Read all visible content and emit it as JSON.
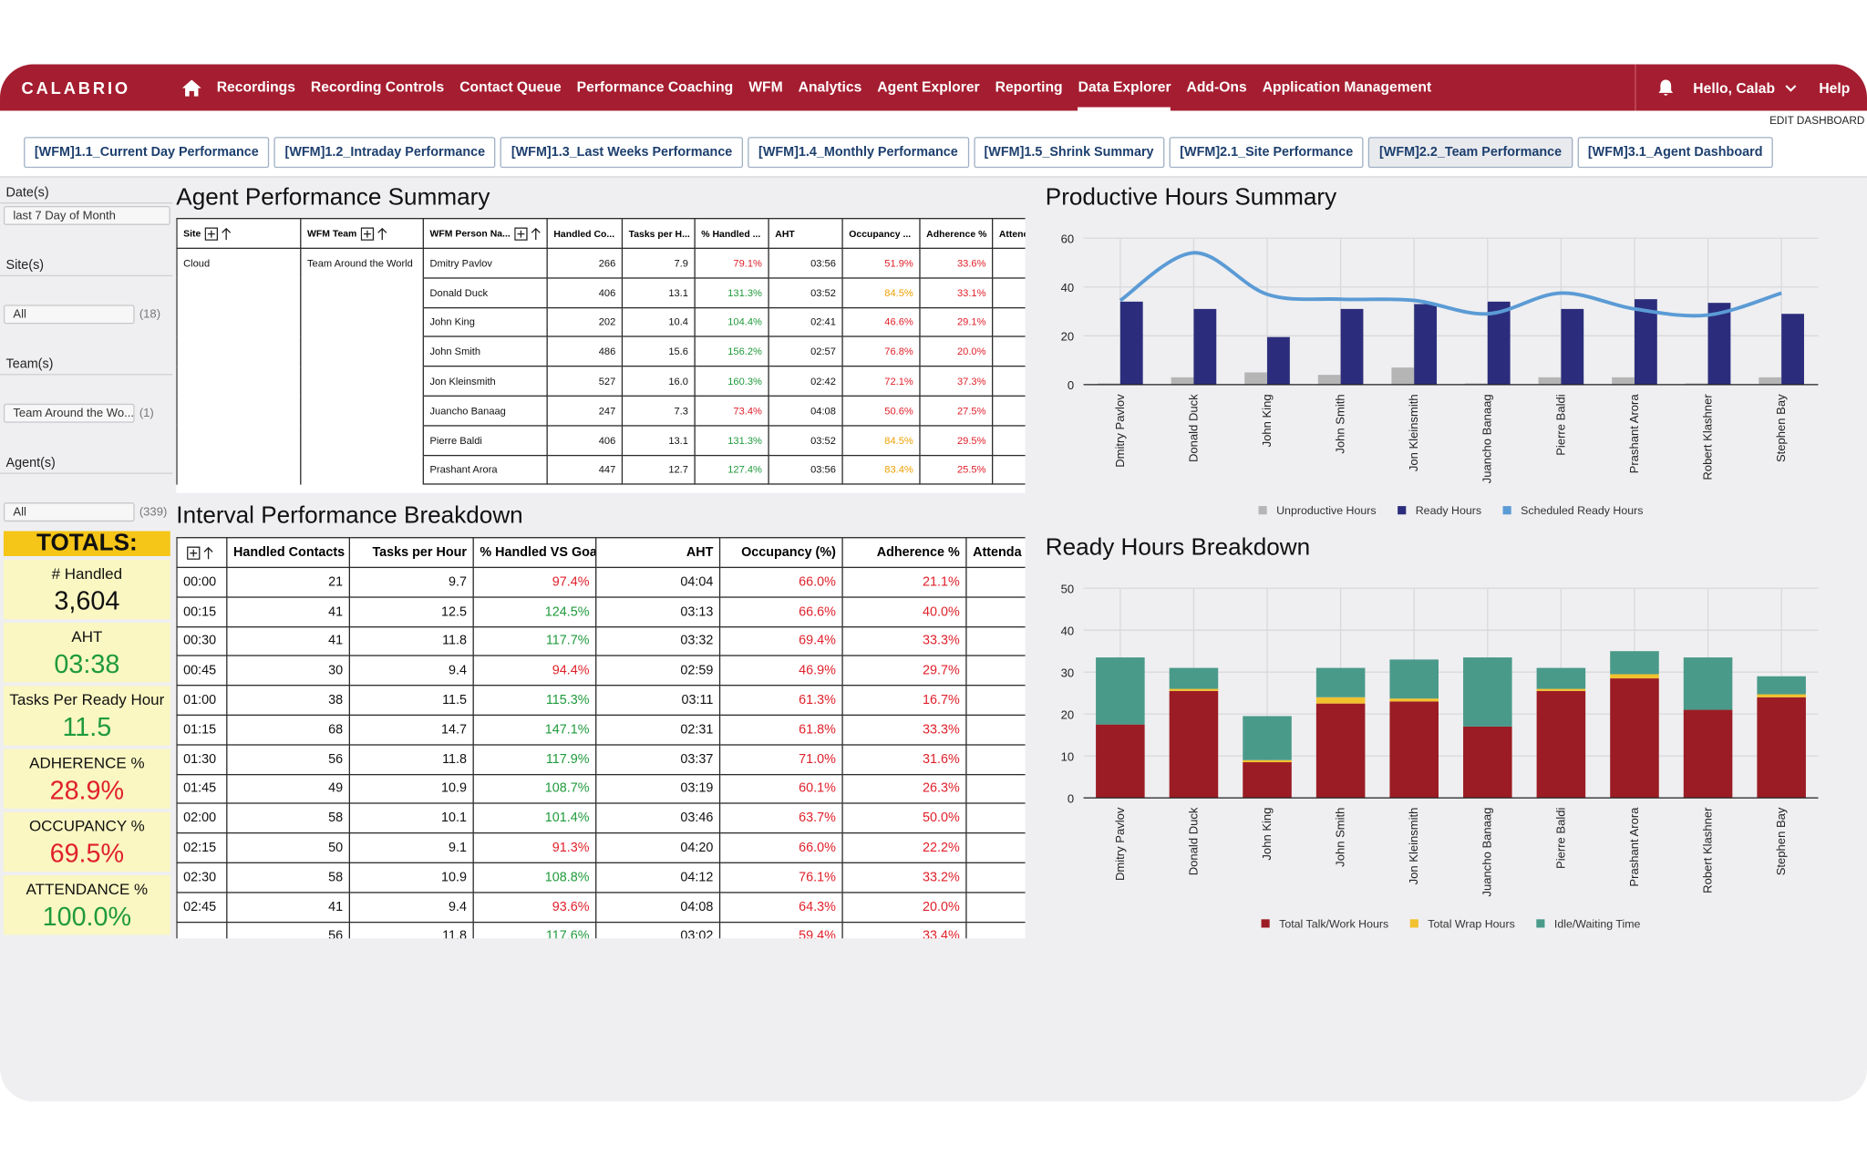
{
  "nav": {
    "brand": "CALABRIO",
    "items": [
      "Recordings",
      "Recording Controls",
      "Contact Queue",
      "Performance Coaching",
      "WFM",
      "Analytics",
      "Agent Explorer",
      "Reporting",
      "Data Explorer",
      "Add-Ons",
      "Application Management"
    ],
    "greeting": "Hello, Calab",
    "help": "Help"
  },
  "edit_dashboard": "EDIT DASHBOARD",
  "tabs": [
    "[WFM]1.1_Current Day Performance",
    "[WFM]1.2_Intraday Performance",
    "[WFM]1.3_Last Weeks Performance",
    "[WFM]1.4_Monthly Performance",
    "[WFM]1.5_Shrink Summary",
    "[WFM]2.1_Site Performance",
    "[WFM]2.2_Team Performance",
    "[WFM]3.1_Agent Dashboard"
  ],
  "filters": [
    {
      "label": "Date(s)",
      "value": "last 7 Day of Month"
    },
    {
      "label": "Site(s)",
      "value": "All",
      "count": "(18)"
    },
    {
      "label": "Team(s)",
      "value": "Team Around the Wo...",
      "count": "(1)"
    },
    {
      "label": "Agent(s)",
      "value": "All",
      "count": "(339)"
    }
  ],
  "totals": {
    "title": "TOTALS:",
    "items": [
      {
        "label": "# Handled",
        "value": "3,604",
        "color": "#111111"
      },
      {
        "label": "AHT",
        "value": "03:38",
        "color": "#1f9a3c"
      },
      {
        "label": "Tasks Per Ready Hour",
        "value": "11.5",
        "color": "#1f9a3c"
      },
      {
        "label": "ADHERENCE %",
        "value": "28.9%",
        "color": "#e0212b"
      },
      {
        "label": "OCCUPANCY %",
        "value": "69.5%",
        "color": "#e0212b"
      },
      {
        "label": "ATTENDANCE %",
        "value": "100.0%",
        "color": "#1f9a3c"
      }
    ]
  },
  "agent_summary": {
    "title": "Agent Performance Summary",
    "columns": [
      "Site",
      "WFM Team",
      "WFM Person Na...",
      "Handled Co...",
      "Tasks per H...",
      "% Handled ...",
      "AHT",
      "Occupancy ...",
      "Adherence %",
      "Attend"
    ],
    "rows": [
      [
        "Cloud",
        "Team Around the World",
        "Dmitry Pavlov",
        "266",
        "7.9",
        "79.1%",
        "03:56",
        "51.9%",
        "33.6%",
        null
      ],
      [
        null,
        null,
        "Donald Duck",
        "406",
        "13.1",
        "131.3%",
        "03:52",
        "84.5%",
        "33.1%",
        null
      ],
      [
        null,
        null,
        "John King",
        "202",
        "10.4",
        "104.4%",
        "02:41",
        "46.6%",
        "29.1%",
        null
      ],
      [
        null,
        null,
        "John Smith",
        "486",
        "15.6",
        "156.2%",
        "02:57",
        "76.8%",
        "20.0%",
        null
      ],
      [
        null,
        null,
        "Jon Kleinsmith",
        "527",
        "16.0",
        "160.3%",
        "02:42",
        "72.1%",
        "37.3%",
        null
      ],
      [
        null,
        null,
        "Juancho Banaag",
        "247",
        "7.3",
        "73.4%",
        "04:08",
        "50.6%",
        "27.5%",
        null
      ],
      [
        null,
        null,
        "Pierre Baldi",
        "406",
        "13.1",
        "131.3%",
        "03:52",
        "84.5%",
        "29.5%",
        null
      ],
      [
        null,
        null,
        "Prashant Arora",
        "447",
        "12.7",
        "127.4%",
        "03:56",
        "83.4%",
        "25.5%",
        null
      ]
    ]
  },
  "interval_breakdown": {
    "title": "Interval Performance Breakdown",
    "columns": [
      null,
      "Handled Contacts",
      "Tasks per Hour",
      "% Handled VS Goal",
      "AHT",
      "Occupancy (%)",
      "Adherence %",
      "Attenda"
    ],
    "rows": [
      [
        "00:00",
        "21",
        "9.7",
        "97.4%",
        "04:04",
        "66.0%",
        "21.1%",
        null
      ],
      [
        "00:15",
        "41",
        "12.5",
        "124.5%",
        "03:13",
        "66.6%",
        "40.0%",
        null
      ],
      [
        "00:30",
        "41",
        "11.8",
        "117.7%",
        "03:32",
        "69.4%",
        "33.3%",
        null
      ],
      [
        "00:45",
        "30",
        "9.4",
        "94.4%",
        "02:59",
        "46.9%",
        "29.7%",
        null
      ],
      [
        "01:00",
        "38",
        "11.5",
        "115.3%",
        "03:11",
        "61.3%",
        "16.7%",
        null
      ],
      [
        "01:15",
        "68",
        "14.7",
        "147.1%",
        "02:31",
        "61.8%",
        "33.3%",
        null
      ],
      [
        "01:30",
        "56",
        "11.8",
        "117.9%",
        "03:37",
        "71.0%",
        "31.6%",
        null
      ],
      [
        "01:45",
        "49",
        "10.9",
        "108.7%",
        "03:19",
        "60.1%",
        "26.3%",
        null
      ],
      [
        "02:00",
        "58",
        "10.1",
        "101.4%",
        "03:46",
        "63.7%",
        "50.0%",
        null
      ],
      [
        "02:15",
        "50",
        "9.1",
        "91.3%",
        "04:20",
        "66.0%",
        "22.2%",
        null
      ],
      [
        "02:30",
        "58",
        "10.9",
        "108.8%",
        "04:12",
        "76.1%",
        "33.2%",
        null
      ],
      [
        "02:45",
        "41",
        "9.4",
        "93.6%",
        "04:08",
        "64.3%",
        "20.0%",
        null
      ],
      [
        null,
        "56",
        "11.8",
        "117.6%",
        "03:02",
        "59.4%",
        "33.4%",
        null
      ]
    ]
  },
  "chart_data": [
    {
      "type": "bar",
      "title": "Productive Hours Summary",
      "categories": [
        "Dmitry Pavlov",
        "Donald Duck",
        "John King",
        "John Smith",
        "Jon Kleinsmith",
        "Juancho Banaag",
        "Pierre Baldi",
        "Prashant Arora",
        "Robert Klashner",
        "Stephen Bay"
      ],
      "series": [
        {
          "name": "Unproductive Hours",
          "color": "#b5b5b5",
          "values": [
            0.5,
            3,
            5,
            4,
            7,
            0.5,
            3,
            3,
            0.5,
            3
          ]
        },
        {
          "name": "Ready Hours",
          "color": "#2b2d7c",
          "values": [
            34,
            31,
            19.5,
            31,
            33,
            34,
            31,
            35,
            33.5,
            29
          ]
        },
        {
          "name": "Scheduled Ready Hours",
          "color": "#5b9bd5",
          "type": "line",
          "values": [
            34.5,
            54,
            37,
            35,
            34.5,
            29,
            37.5,
            31,
            28.5,
            37.5
          ]
        }
      ],
      "ylim": [
        0,
        60
      ],
      "yticks": [
        0,
        20,
        40,
        60
      ],
      "grid": true,
      "legend": "bottom"
    },
    {
      "type": "stacked_bar",
      "title": "Ready Hours Breakdown",
      "categories": [
        "Dmitry Pavlov",
        "Donald Duck",
        "John King",
        "John Smith",
        "Jon Kleinsmith",
        "Juancho Banaag",
        "Pierre Baldi",
        "Prashant Arora",
        "Robert Klashner",
        "Stephen Bay"
      ],
      "series": [
        {
          "name": "Total Talk/Work Hours",
          "color": "#9b1c24",
          "values": [
            17.5,
            25.5,
            8.5,
            22.5,
            23,
            17,
            25.5,
            28.5,
            21,
            24
          ]
        },
        {
          "name": "Total Wrap Hours",
          "color": "#f2c12e",
          "values": [
            0,
            0.5,
            0.5,
            1.5,
            0.7,
            0,
            0.5,
            1,
            0,
            0.7
          ]
        },
        {
          "name": "Idle/Waiting Time",
          "color": "#4a9a8a",
          "values": [
            16,
            5,
            10.5,
            7,
            9.3,
            16.5,
            5,
            5.5,
            12.5,
            4.3
          ]
        }
      ],
      "ylim": [
        0,
        50
      ],
      "yticks": [
        0,
        10,
        20,
        30,
        40,
        50
      ],
      "grid": true,
      "legend": "bottom"
    }
  ]
}
